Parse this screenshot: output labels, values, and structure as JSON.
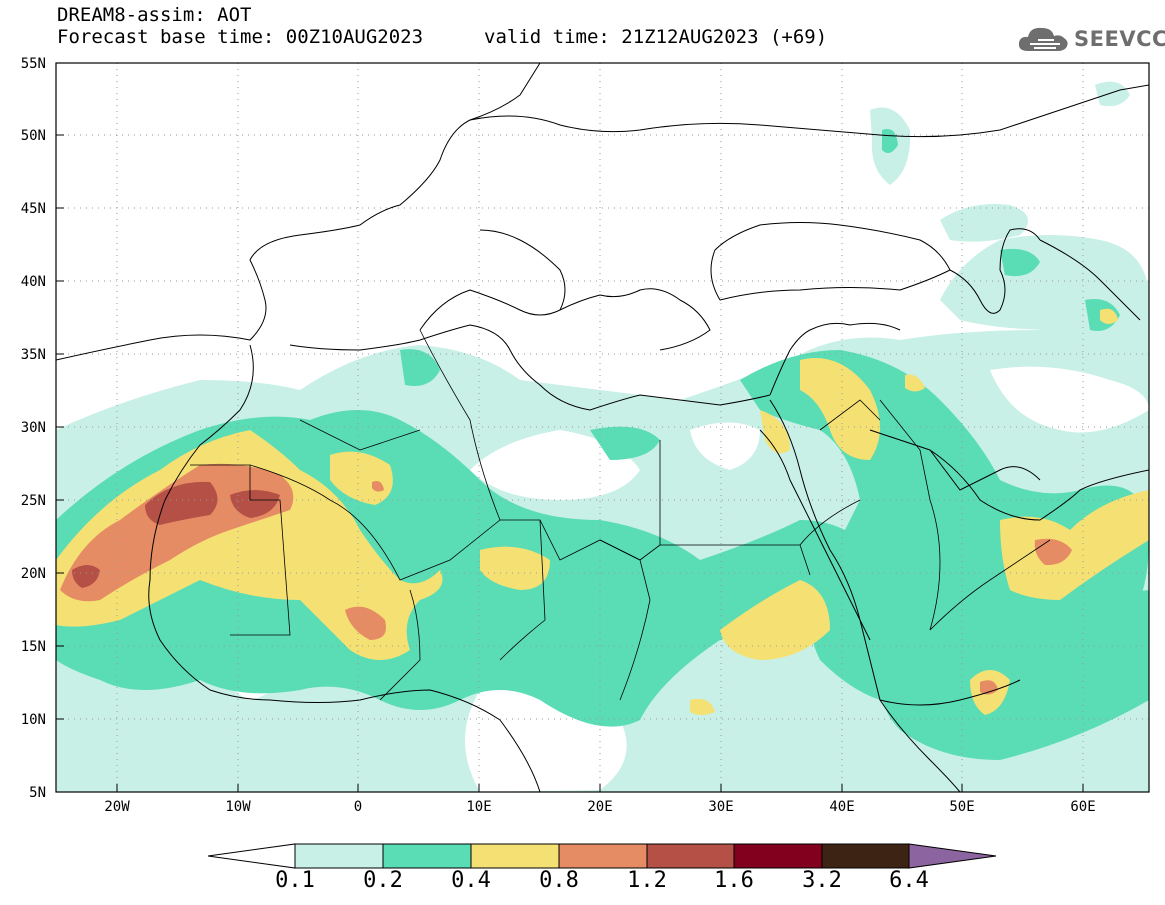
{
  "title": {
    "line1": "DREAM8-assim: AOT",
    "base": "Forecast base time: 00Z10AUG2023",
    "valid": "valid time: 21Z12AUG2023 (+69)"
  },
  "logo": {
    "icon": "cloud-icon",
    "text": "SEEVCCC"
  },
  "map": {
    "lon_range": [
      -25,
      65
    ],
    "lat_range": [
      5,
      55
    ],
    "lat_labels": [
      "5N",
      "10N",
      "15N",
      "20N",
      "25N",
      "30N",
      "35N",
      "40N",
      "45N",
      "50N",
      "55N"
    ],
    "lon_labels": [
      "20W",
      "10W",
      "0",
      "10E",
      "20E",
      "30E",
      "40E",
      "50E",
      "60E"
    ]
  },
  "colorbar": {
    "levels": [
      "0.1",
      "0.2",
      "0.4",
      "0.8",
      "1.2",
      "1.6",
      "3.2",
      "6.4"
    ],
    "colors": [
      "#ffffff",
      "#c8f0e6",
      "#5adcb4",
      "#f5e173",
      "#e68c64",
      "#b45046",
      "#82001e",
      "#3c2314",
      "#8c64a0"
    ]
  }
}
